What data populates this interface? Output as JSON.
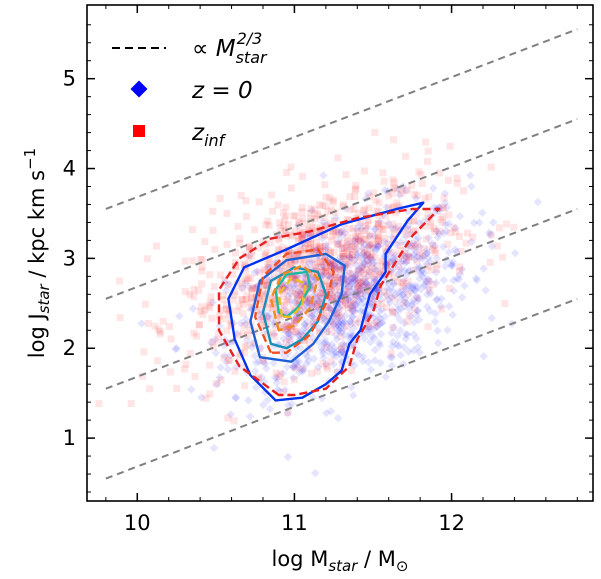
{
  "chart_data": {
    "type": "scatter",
    "xlabel": {
      "base": "log M",
      "sub": "star",
      "suffix": " / M",
      "unit_sub": "⊙"
    },
    "ylabel": {
      "base": "log J",
      "sub": "star",
      "suffix": " / kpc km s",
      "sup": "−1"
    },
    "xlim": [
      9.68,
      12.9
    ],
    "ylim": [
      0.3,
      5.82
    ],
    "xticks": [
      10,
      11,
      12
    ],
    "xtick_labels": [
      "10",
      "11",
      "12"
    ],
    "yticks": [
      1,
      2,
      3,
      4,
      5
    ],
    "ytick_labels": [
      "1",
      "2",
      "3",
      "4",
      "5"
    ],
    "legend": {
      "placement": "top-left",
      "entries": [
        {
          "name": "line",
          "prefix": "∝ M",
          "sub": "star",
          "sup": "2/3",
          "marker": "dashed-line",
          "color": "#000000"
        },
        {
          "name": "z0",
          "text": "z = 0",
          "marker": "diamond",
          "color": "#0000ff"
        },
        {
          "name": "zinf",
          "prefix": "z",
          "sub": "inf",
          "marker": "square",
          "color": "#ff0000"
        }
      ]
    },
    "reference_lines": {
      "slope": 0.6667,
      "x_range": [
        9.8,
        12.8
      ],
      "y_at_start": [
        0.55,
        1.55,
        2.55,
        3.55
      ],
      "color": "#808080"
    },
    "series": [
      {
        "name": "z0",
        "color": "#0000ff",
        "center": [
          11.35,
          2.55
        ],
        "spread": [
          0.38,
          0.6
        ],
        "slope": 0.6,
        "n": 900
      },
      {
        "name": "zinf",
        "color": "#ff0000",
        "center": [
          11.15,
          2.85
        ],
        "spread": [
          0.42,
          0.62
        ],
        "slope": 0.55,
        "n": 900
      }
    ],
    "contours": {
      "z0": [
        {
          "color": "#0033ee",
          "dash": false,
          "points": [
            [
              10.88,
              1.42
            ],
            [
              10.72,
              1.7
            ],
            [
              10.62,
              2.1
            ],
            [
              10.58,
              2.55
            ],
            [
              10.68,
              2.9
            ],
            [
              10.95,
              3.1
            ],
            [
              11.3,
              3.38
            ],
            [
              11.65,
              3.55
            ],
            [
              11.82,
              3.62
            ],
            [
              11.72,
              3.42
            ],
            [
              11.58,
              3.05
            ],
            [
              11.58,
              2.85
            ],
            [
              11.48,
              2.6
            ],
            [
              11.42,
              2.2
            ],
            [
              11.35,
              2.05
            ],
            [
              11.3,
              1.75
            ],
            [
              11.2,
              1.6
            ],
            [
              11.05,
              1.45
            ]
          ]
        },
        {
          "color": "#1f5fd6",
          "dash": false,
          "points": [
            [
              10.78,
              1.9
            ],
            [
              10.72,
              2.3
            ],
            [
              10.78,
              2.75
            ],
            [
              10.95,
              2.98
            ],
            [
              11.2,
              3.05
            ],
            [
              11.32,
              2.92
            ],
            [
              11.3,
              2.6
            ],
            [
              11.22,
              2.3
            ],
            [
              11.12,
              2.05
            ],
            [
              10.98,
              1.85
            ]
          ]
        },
        {
          "color": "#1a8fb8",
          "dash": false,
          "points": [
            [
              10.85,
              2.05
            ],
            [
              10.8,
              2.4
            ],
            [
              10.85,
              2.75
            ],
            [
              11.0,
              2.9
            ],
            [
              11.15,
              2.85
            ],
            [
              11.2,
              2.6
            ],
            [
              11.15,
              2.3
            ],
            [
              11.05,
              2.1
            ],
            [
              10.95,
              2.0
            ]
          ]
        },
        {
          "color": "#20b8a0",
          "dash": false,
          "points": [
            [
              10.9,
              2.4
            ],
            [
              10.88,
              2.65
            ],
            [
              10.95,
              2.82
            ],
            [
              11.08,
              2.85
            ],
            [
              11.1,
              2.68
            ],
            [
              11.02,
              2.45
            ],
            [
              10.95,
              2.35
            ]
          ]
        }
      ],
      "zinf": [
        {
          "color": "#e82020",
          "dash": true,
          "points": [
            [
              10.9,
              1.48
            ],
            [
              10.65,
              1.8
            ],
            [
              10.52,
              2.2
            ],
            [
              10.52,
              2.65
            ],
            [
              10.65,
              3.0
            ],
            [
              10.85,
              3.22
            ],
            [
              11.1,
              3.3
            ],
            [
              11.4,
              3.45
            ],
            [
              11.75,
              3.55
            ],
            [
              11.92,
              3.55
            ],
            [
              11.75,
              3.25
            ],
            [
              11.55,
              2.7
            ],
            [
              11.5,
              2.4
            ],
            [
              11.4,
              2.1
            ],
            [
              11.35,
              1.8
            ],
            [
              11.2,
              1.55
            ],
            [
              11.0,
              1.48
            ]
          ]
        },
        {
          "color": "#f05020",
          "dash": true,
          "points": [
            [
              10.85,
              1.95
            ],
            [
              10.75,
              2.35
            ],
            [
              10.8,
              2.8
            ],
            [
              10.95,
              3.05
            ],
            [
              11.15,
              3.1
            ],
            [
              11.25,
              2.85
            ],
            [
              11.2,
              2.5
            ],
            [
              11.1,
              2.15
            ],
            [
              10.95,
              1.95
            ]
          ]
        },
        {
          "color": "#f08a20",
          "dash": true,
          "points": [
            [
              10.9,
              2.2
            ],
            [
              10.85,
              2.55
            ],
            [
              10.92,
              2.82
            ],
            [
              11.05,
              2.92
            ],
            [
              11.15,
              2.78
            ],
            [
              11.1,
              2.45
            ],
            [
              11.0,
              2.25
            ]
          ]
        },
        {
          "color": "#e6c020",
          "dash": true,
          "points": [
            [
              10.92,
              2.35
            ],
            [
              10.9,
              2.6
            ],
            [
              10.98,
              2.78
            ],
            [
              11.07,
              2.72
            ],
            [
              11.05,
              2.48
            ],
            [
              10.98,
              2.35
            ]
          ]
        }
      ]
    }
  }
}
